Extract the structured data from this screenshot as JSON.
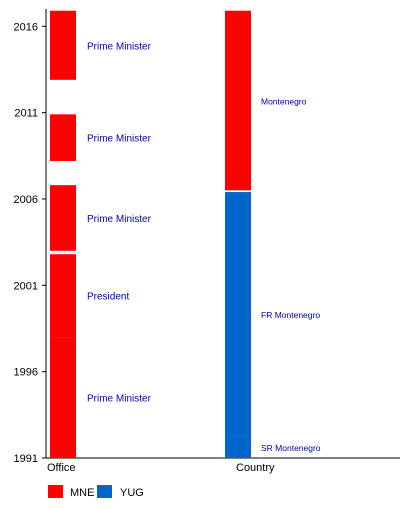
{
  "chart_data": {
    "type": "bar",
    "orientation": "vertical-timeline",
    "ylim": [
      1991,
      2017
    ],
    "yticks": [
      1991,
      1996,
      2001,
      2006,
      2011,
      2016
    ],
    "categories": [
      "Office",
      "Country"
    ],
    "columns": [
      {
        "category": "Office",
        "segments": [
          {
            "start": 1991.0,
            "end": 1998.0,
            "label": "Prime Minister",
            "group": "MNE"
          },
          {
            "start": 1998.0,
            "end": 2002.8,
            "label": "President",
            "group": "MNE"
          },
          {
            "start": 2003.0,
            "end": 2006.8,
            "label": "Prime Minister",
            "group": "MNE"
          },
          {
            "start": 2008.2,
            "end": 2010.9,
            "label": "Prime Minister",
            "group": "MNE"
          },
          {
            "start": 2012.9,
            "end": 2016.9,
            "label": "Prime Minister",
            "group": "MNE"
          }
        ]
      },
      {
        "category": "Country",
        "segments": [
          {
            "start": 1992.3,
            "end": 1991.0,
            "label": "SR Montenegro",
            "group": "YUG"
          },
          {
            "start": 1992.3,
            "end": 2006.4,
            "label": "FR Montenegro",
            "group": "YUG"
          },
          {
            "start": 2006.5,
            "end": 2016.9,
            "label": "Montenegro",
            "group": "MNE"
          }
        ]
      }
    ],
    "legend": [
      {
        "name": "MNE",
        "color": "#ff0000"
      },
      {
        "name": "YUG",
        "color": "#0066cc"
      }
    ],
    "legend_placement": "bottom-left",
    "grid": false
  }
}
